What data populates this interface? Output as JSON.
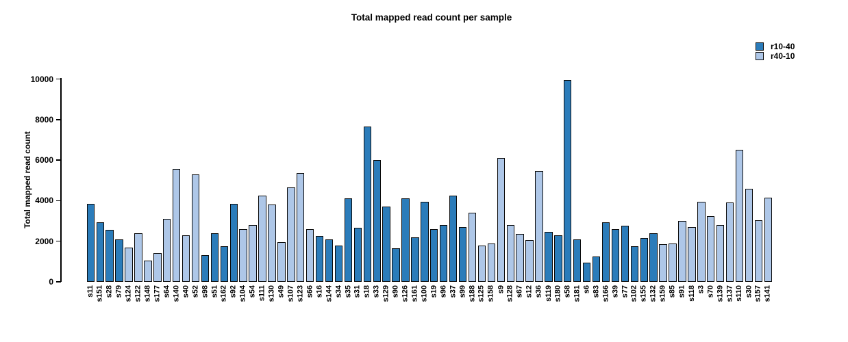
{
  "title": "Total mapped read count per sample",
  "chart_data": {
    "type": "bar",
    "title": "Total mapped read count per sample",
    "xlabel": "",
    "ylabel": "Total mapped read count",
    "ylim": [
      0,
      10000
    ],
    "yticks": [
      0,
      2000,
      4000,
      6000,
      8000,
      10000
    ],
    "grid": false,
    "legend_position": "top-right",
    "series_colors": {
      "r10-40": "#2b7cba",
      "r40-10": "#aec7e8"
    },
    "legend": [
      {
        "name": "r10-40",
        "color": "#2b7cba"
      },
      {
        "name": "r40-10",
        "color": "#aec7e8"
      }
    ],
    "bars": [
      {
        "sample": "s11",
        "value": 3850,
        "series": "r10-40"
      },
      {
        "sample": "s151",
        "value": 2950,
        "series": "r10-40"
      },
      {
        "sample": "s28",
        "value": 2550,
        "series": "r10-40"
      },
      {
        "sample": "s79",
        "value": 2100,
        "series": "r10-40"
      },
      {
        "sample": "s124",
        "value": 1700,
        "series": "r40-10"
      },
      {
        "sample": "s122",
        "value": 2400,
        "series": "r40-10"
      },
      {
        "sample": "s148",
        "value": 1050,
        "series": "r40-10"
      },
      {
        "sample": "s177",
        "value": 1400,
        "series": "r40-10"
      },
      {
        "sample": "s64",
        "value": 3100,
        "series": "r40-10"
      },
      {
        "sample": "s140",
        "value": 5550,
        "series": "r40-10"
      },
      {
        "sample": "s40",
        "value": 2300,
        "series": "r40-10"
      },
      {
        "sample": "s52",
        "value": 5300,
        "series": "r40-10"
      },
      {
        "sample": "s98",
        "value": 1300,
        "series": "r10-40"
      },
      {
        "sample": "s51",
        "value": 2400,
        "series": "r10-40"
      },
      {
        "sample": "s162",
        "value": 1750,
        "series": "r10-40"
      },
      {
        "sample": "s92",
        "value": 3850,
        "series": "r10-40"
      },
      {
        "sample": "s104",
        "value": 2600,
        "series": "r40-10"
      },
      {
        "sample": "s54",
        "value": 2800,
        "series": "r40-10"
      },
      {
        "sample": "s111",
        "value": 4250,
        "series": "r40-10"
      },
      {
        "sample": "s130",
        "value": 3800,
        "series": "r40-10"
      },
      {
        "sample": "s49",
        "value": 1950,
        "series": "r40-10"
      },
      {
        "sample": "s107",
        "value": 4650,
        "series": "r40-10"
      },
      {
        "sample": "s123",
        "value": 5350,
        "series": "r40-10"
      },
      {
        "sample": "s66",
        "value": 2600,
        "series": "r40-10"
      },
      {
        "sample": "s16",
        "value": 2250,
        "series": "r10-40"
      },
      {
        "sample": "s144",
        "value": 2100,
        "series": "r10-40"
      },
      {
        "sample": "s34",
        "value": 1800,
        "series": "r10-40"
      },
      {
        "sample": "s35",
        "value": 4100,
        "series": "r10-40"
      },
      {
        "sample": "s31",
        "value": 2650,
        "series": "r10-40"
      },
      {
        "sample": "s18",
        "value": 7650,
        "series": "r10-40"
      },
      {
        "sample": "s33",
        "value": 6000,
        "series": "r10-40"
      },
      {
        "sample": "s129",
        "value": 3700,
        "series": "r10-40"
      },
      {
        "sample": "s90",
        "value": 1650,
        "series": "r10-40"
      },
      {
        "sample": "s126",
        "value": 4100,
        "series": "r10-40"
      },
      {
        "sample": "s161",
        "value": 2200,
        "series": "r10-40"
      },
      {
        "sample": "s100",
        "value": 3950,
        "series": "r10-40"
      },
      {
        "sample": "s19",
        "value": 2600,
        "series": "r10-40"
      },
      {
        "sample": "s96",
        "value": 2800,
        "series": "r10-40"
      },
      {
        "sample": "s37",
        "value": 4250,
        "series": "r10-40"
      },
      {
        "sample": "s99",
        "value": 2700,
        "series": "r10-40"
      },
      {
        "sample": "s188",
        "value": 3400,
        "series": "r40-10"
      },
      {
        "sample": "s125",
        "value": 1800,
        "series": "r40-10"
      },
      {
        "sample": "s158",
        "value": 1900,
        "series": "r40-10"
      },
      {
        "sample": "s9",
        "value": 6100,
        "series": "r40-10"
      },
      {
        "sample": "s128",
        "value": 2800,
        "series": "r40-10"
      },
      {
        "sample": "s67",
        "value": 2350,
        "series": "r40-10"
      },
      {
        "sample": "s12",
        "value": 2050,
        "series": "r40-10"
      },
      {
        "sample": "s36",
        "value": 5450,
        "series": "r40-10"
      },
      {
        "sample": "s119",
        "value": 2450,
        "series": "r10-40"
      },
      {
        "sample": "s180",
        "value": 2300,
        "series": "r10-40"
      },
      {
        "sample": "s58",
        "value": 9950,
        "series": "r10-40"
      },
      {
        "sample": "s181",
        "value": 2100,
        "series": "r10-40"
      },
      {
        "sample": "s6",
        "value": 950,
        "series": "r10-40"
      },
      {
        "sample": "s83",
        "value": 1250,
        "series": "r10-40"
      },
      {
        "sample": "s166",
        "value": 2950,
        "series": "r10-40"
      },
      {
        "sample": "s39",
        "value": 2600,
        "series": "r10-40"
      },
      {
        "sample": "s77",
        "value": 2750,
        "series": "r10-40"
      },
      {
        "sample": "s102",
        "value": 1750,
        "series": "r10-40"
      },
      {
        "sample": "s155",
        "value": 2150,
        "series": "r10-40"
      },
      {
        "sample": "s132",
        "value": 2400,
        "series": "r10-40"
      },
      {
        "sample": "s159",
        "value": 1850,
        "series": "r40-10"
      },
      {
        "sample": "s85",
        "value": 1900,
        "series": "r40-10"
      },
      {
        "sample": "s91",
        "value": 3000,
        "series": "r40-10"
      },
      {
        "sample": "s118",
        "value": 2700,
        "series": "r40-10"
      },
      {
        "sample": "s3",
        "value": 3950,
        "series": "r40-10"
      },
      {
        "sample": "s70",
        "value": 3250,
        "series": "r40-10"
      },
      {
        "sample": "s139",
        "value": 2800,
        "series": "r40-10"
      },
      {
        "sample": "s137",
        "value": 3900,
        "series": "r40-10"
      },
      {
        "sample": "s110",
        "value": 6500,
        "series": "r40-10"
      },
      {
        "sample": "s30",
        "value": 4600,
        "series": "r40-10"
      },
      {
        "sample": "s157",
        "value": 3050,
        "series": "r40-10"
      },
      {
        "sample": "s141",
        "value": 4150,
        "series": "r40-10"
      }
    ]
  }
}
